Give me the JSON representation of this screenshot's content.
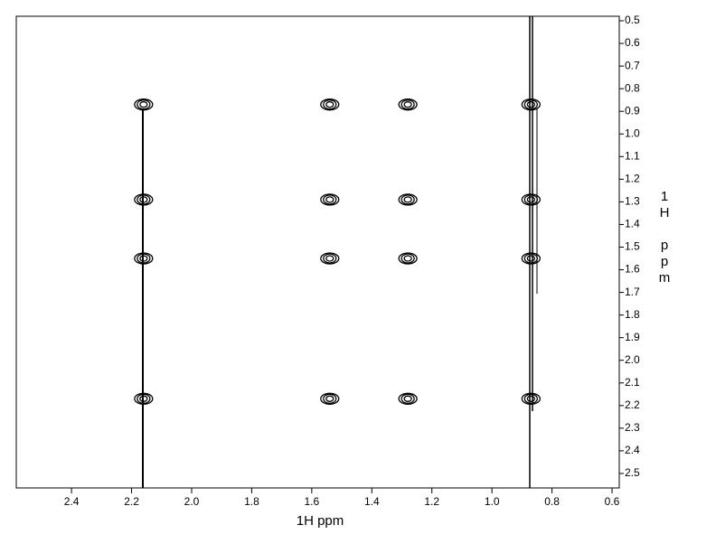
{
  "chart_data": {
    "type": "scatter",
    "xlabel": "1H ppm",
    "ylabel": "1H ppm",
    "xlim": [
      2.584,
      0.576
    ],
    "ylim": [
      0.48,
      2.564
    ],
    "xticks": [
      2.4,
      2.2,
      {
        "value": 2,
        "label": "2.0"
      },
      1.8,
      1.6,
      1.4,
      1.2,
      {
        "value": 1,
        "label": "1.0"
      },
      0.8,
      0.6
    ],
    "yticks": [
      0.5,
      0.6,
      0.7,
      0.8,
      0.9,
      {
        "value": 1,
        "label": "1.0"
      },
      1.1,
      1.2,
      1.3,
      1.4,
      1.5,
      1.6,
      1.7,
      1.8,
      1.9,
      {
        "value": 2,
        "label": "2.0"
      },
      2.1,
      2.2,
      2.3,
      2.4,
      2.5
    ],
    "series": [
      {
        "color": "#000000",
        "x": [
          2.16,
          1.54,
          1.28,
          0.87,
          2.16,
          1.54,
          1.28,
          0.87,
          2.16,
          1.54,
          1.28,
          0.87,
          2.16,
          1.54,
          1.28,
          0.87
        ],
        "values": [
          0.87,
          0.87,
          0.87,
          0.87,
          1.29,
          1.29,
          1.29,
          1.29,
          1.55,
          1.55,
          1.55,
          1.55,
          2.17,
          2.17,
          2.17,
          2.17
        ]
      }
    ]
  }
}
